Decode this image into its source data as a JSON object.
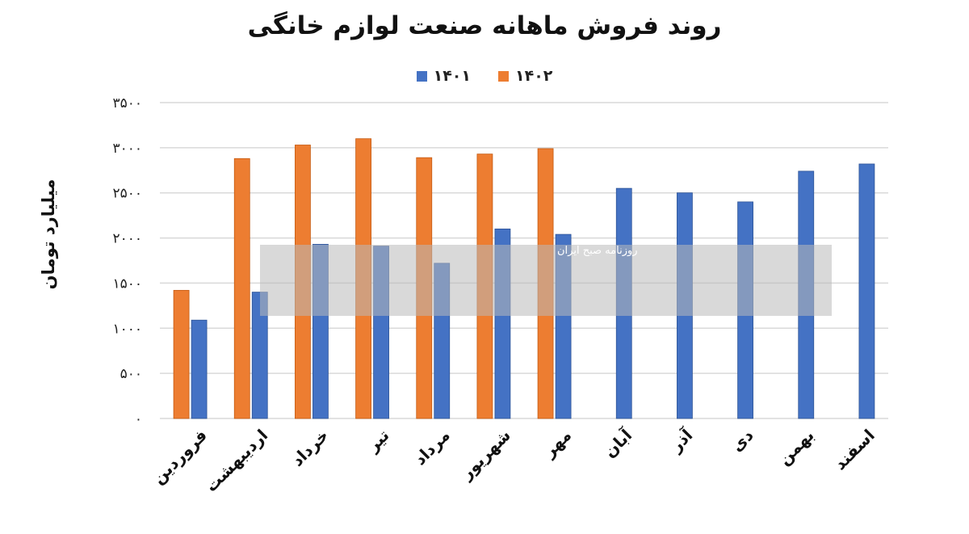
{
  "chart_data": {
    "type": "bar",
    "title": "روند فروش ماهانه صنعت لوازم خانگی",
    "ylabel": "میلیارد تومان",
    "xlabel": "",
    "ylim": [
      0,
      3500
    ],
    "ytick_values": [
      0,
      500,
      1000,
      1500,
      2000,
      2500,
      3000,
      3500
    ],
    "ytick_labels": [
      "۰",
      "۵۰۰",
      "۱۰۰۰",
      "۱۵۰۰",
      "۲۰۰۰",
      "۲۵۰۰",
      "۳۰۰۰",
      "۳۵۰۰"
    ],
    "grid": true,
    "legend_position": "top",
    "categories": [
      "فروردین",
      "اردیبهشت",
      "خرداد",
      "تیر",
      "مرداد",
      "شهریور",
      "مهر",
      "آبان",
      "آذر",
      "دی",
      "بهمن",
      "اسفند"
    ],
    "series": [
      {
        "name": "۱۴۰۲",
        "color": "#ED7D31",
        "values": [
          1420,
          2880,
          3030,
          3100,
          2890,
          2930,
          2990,
          null,
          null,
          null,
          null,
          null
        ]
      },
      {
        "name": "۱۴۰۱",
        "color": "#4472C4",
        "values": [
          1090,
          1400,
          1930,
          1910,
          1720,
          2100,
          2040,
          2550,
          2500,
          2400,
          2740,
          2820
        ]
      }
    ]
  },
  "watermark": {
    "caption": "روزنامه صبح ایران"
  }
}
